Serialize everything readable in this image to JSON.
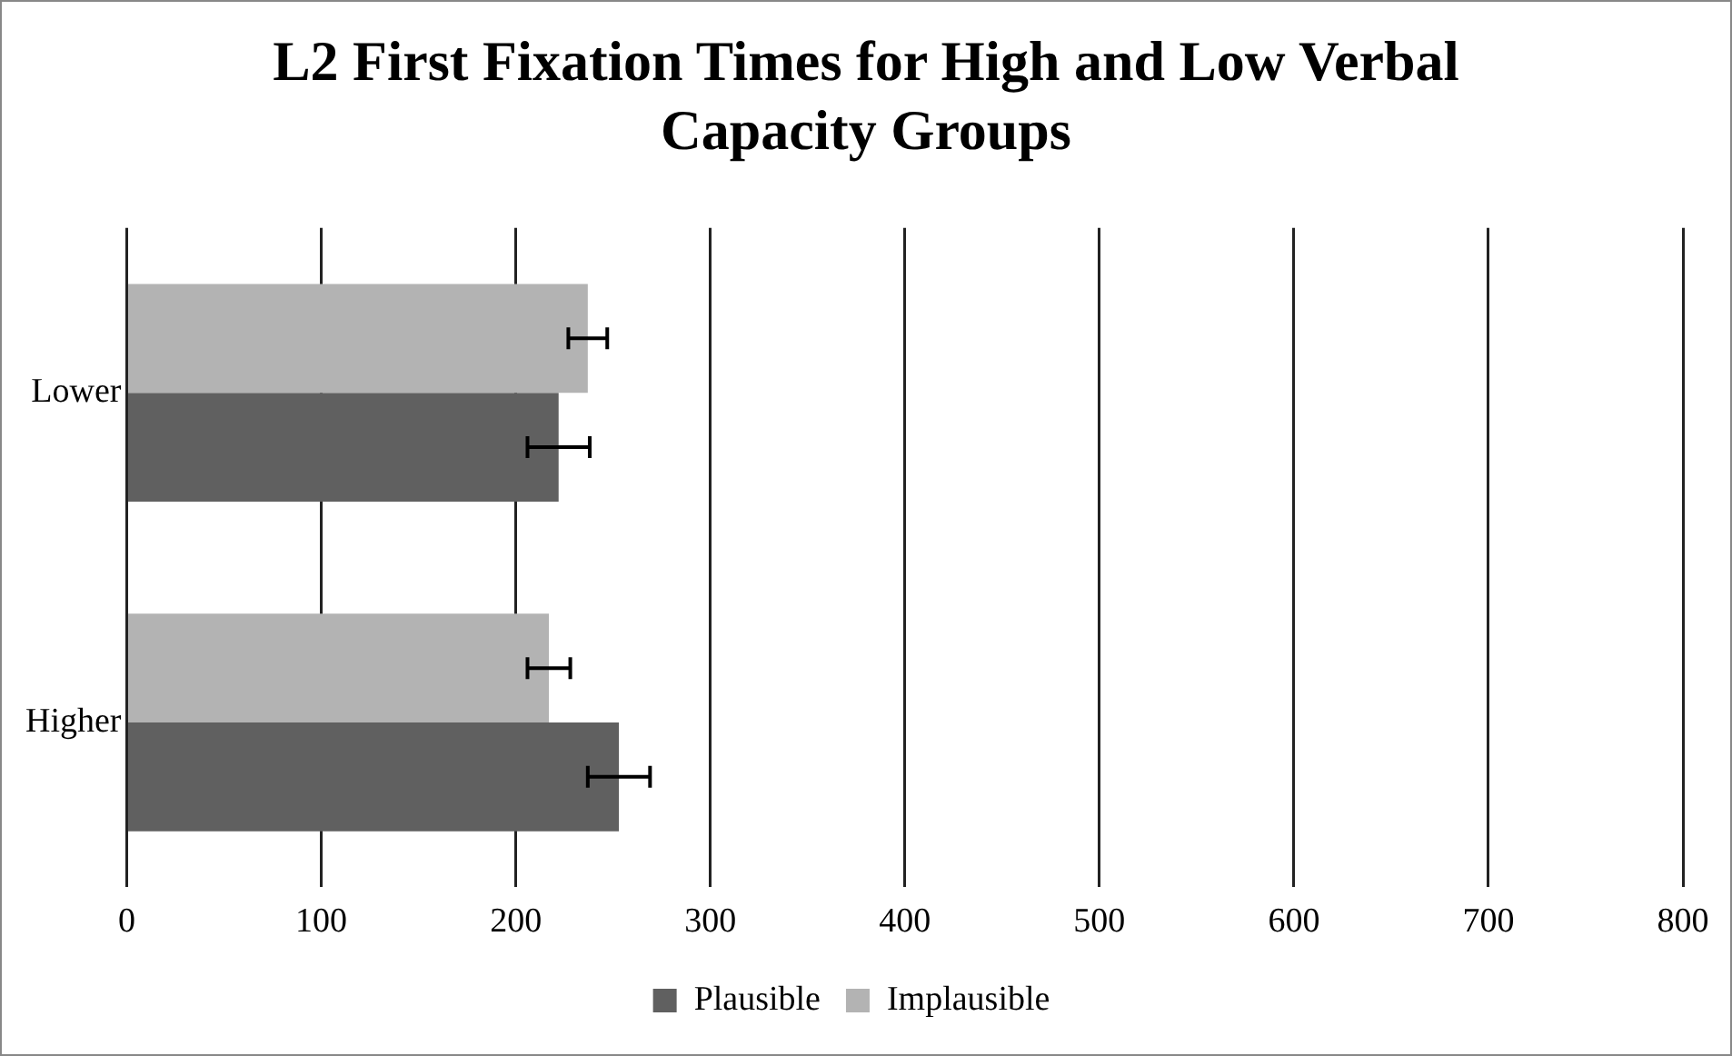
{
  "chart_data": {
    "type": "bar",
    "orientation": "horizontal",
    "title": "L2 First Fixation Times for High and Low Verbal Capacity Groups",
    "categories": [
      "Lower",
      "Higher"
    ],
    "series": [
      {
        "name": "Plausible",
        "color": "#606060",
        "values": [
          222,
          253
        ],
        "errors": [
          16,
          16
        ]
      },
      {
        "name": "Implausible",
        "color": "#b3b3b3",
        "values": [
          237,
          217
        ],
        "errors": [
          10,
          11
        ]
      }
    ],
    "xlim": [
      0,
      800
    ],
    "xticks": [
      0,
      100,
      200,
      300,
      400,
      500,
      600,
      700,
      800
    ],
    "grid": "x",
    "legend": "bottom"
  }
}
